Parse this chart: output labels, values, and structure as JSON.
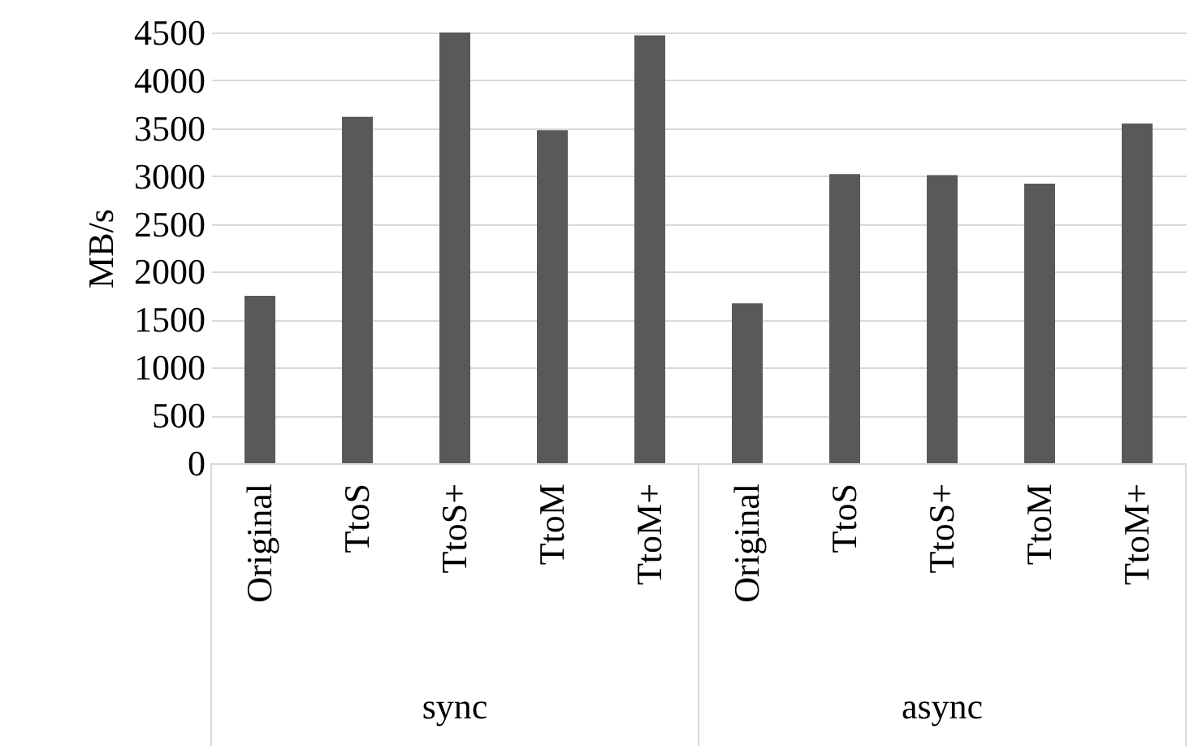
{
  "chart_data": {
    "type": "bar",
    "ylabel": "MB/s",
    "categories": [
      "Original",
      "TtoS",
      "TtoS+",
      "TtoM",
      "TtoM+",
      "Original",
      "TtoS",
      "TtoS+",
      "TtoM",
      "TtoM+"
    ],
    "values": [
      1750,
      3620,
      4500,
      3480,
      4470,
      1670,
      3020,
      3010,
      2920,
      3550
    ],
    "color": "#595959",
    "ylim": [
      0,
      4500
    ],
    "yticks": [
      0,
      500,
      1000,
      1500,
      2000,
      2500,
      3000,
      3500,
      4000,
      4500
    ],
    "grid": "y",
    "annotations": [
      "sync",
      "async"
    ]
  }
}
